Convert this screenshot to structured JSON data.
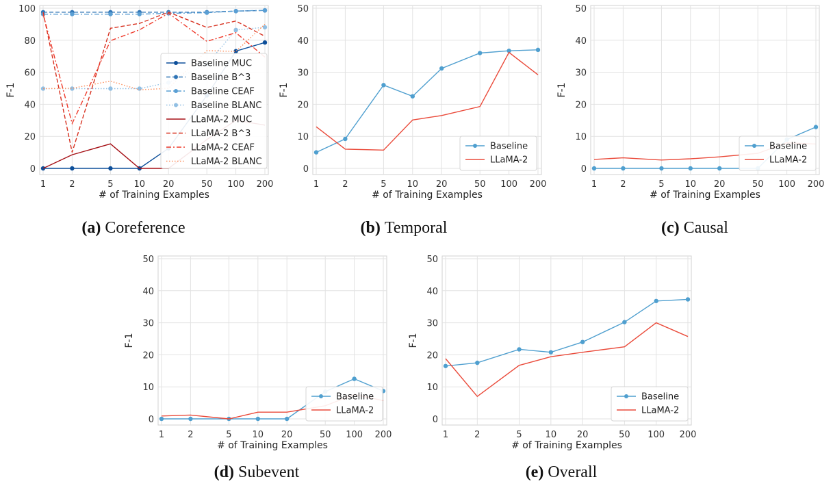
{
  "x_ticks": [
    1,
    2,
    5,
    10,
    20,
    50,
    100,
    200
  ],
  "chart_data": [
    {
      "id": "a",
      "type": "line",
      "caption_label": "(a)",
      "caption_text": "Coreference",
      "xlabel": "# of Training Examples",
      "ylabel": "F-1",
      "ylim": [
        0,
        100
      ],
      "yticks": [
        0,
        20,
        40,
        60,
        80,
        100
      ],
      "x": [
        1,
        2,
        5,
        10,
        20,
        50,
        100,
        200
      ],
      "grid": true,
      "legend_position": "right",
      "series": [
        {
          "name": "Baseline MUC",
          "color": "#0d4f9a",
          "dash": "solid",
          "marker": true,
          "values": [
            0,
            0,
            0,
            0,
            12.5,
            45.5,
            73.2,
            78.6
          ]
        },
        {
          "name": "Baseline B^3",
          "color": "#2f74b5",
          "dash": "dashed",
          "marker": true,
          "values": [
            97.5,
            97.5,
            97.5,
            97.5,
            97.5,
            97.5,
            98.2,
            98.6
          ]
        },
        {
          "name": "Baseline CEAF",
          "color": "#5a9fd4",
          "dash": "dashdot",
          "marker": true,
          "values": [
            96.3,
            96.3,
            96.3,
            96.3,
            96.8,
            97.2,
            98.2,
            98.7
          ]
        },
        {
          "name": "Baseline BLANC",
          "color": "#91bfe3",
          "dash": "dotted",
          "marker": true,
          "values": [
            49.8,
            49.8,
            49.8,
            49.8,
            53.6,
            65.0,
            86.4,
            88.1
          ]
        },
        {
          "name": "LLaMA-2 MUC",
          "color": "#a50f15",
          "dash": "solid",
          "marker": false,
          "values": [
            0,
            8.5,
            15.3,
            0,
            0,
            18,
            30,
            27
          ]
        },
        {
          "name": "LLaMA-2 B^3",
          "color": "#d7301f",
          "dash": "dashed",
          "marker": false,
          "values": [
            97.5,
            10,
            87.5,
            90.5,
            97.5,
            88,
            92,
            82.5
          ]
        },
        {
          "name": "LLaMA-2 CEAF",
          "color": "#ef3b2c",
          "dash": "dashdot",
          "marker": false,
          "values": [
            96.3,
            28,
            79.7,
            86.5,
            96.8,
            79.3,
            84.7,
            69.5
          ]
        },
        {
          "name": "LLaMA-2 BLANC",
          "color": "#fc8d59",
          "dash": "dotted",
          "marker": false,
          "values": [
            49.8,
            50,
            54.5,
            49.0,
            50.0,
            73.5,
            73.0,
            90.0
          ]
        }
      ]
    },
    {
      "id": "b",
      "type": "line",
      "caption_label": "(b)",
      "caption_text": "Temporal",
      "xlabel": "# of Training Examples",
      "ylabel": "F-1",
      "ylim": [
        0,
        50
      ],
      "yticks": [
        0,
        10,
        20,
        30,
        40,
        50
      ],
      "x": [
        1,
        2,
        5,
        10,
        20,
        50,
        100,
        200
      ],
      "grid": true,
      "legend_position": "lower right",
      "series": [
        {
          "name": "Baseline",
          "color": "#4f9fcf",
          "dash": "solid",
          "marker": true,
          "values": [
            5.0,
            9.2,
            26.0,
            22.5,
            31.2,
            36.0,
            36.7,
            37.0
          ]
        },
        {
          "name": "LLaMA-2",
          "color": "#ea4a3a",
          "dash": "solid",
          "marker": false,
          "values": [
            13.0,
            6.0,
            5.7,
            15.1,
            16.5,
            19.3,
            36.2,
            29.2
          ]
        }
      ]
    },
    {
      "id": "c",
      "type": "line",
      "caption_label": "(c)",
      "caption_text": "Causal",
      "xlabel": "# of Training Examples",
      "ylabel": "F-1",
      "ylim": [
        0,
        50
      ],
      "yticks": [
        0,
        10,
        20,
        30,
        40,
        50
      ],
      "x": [
        1,
        2,
        5,
        10,
        20,
        50,
        100,
        200
      ],
      "grid": true,
      "legend_position": "lower right",
      "series": [
        {
          "name": "Baseline",
          "color": "#4f9fcf",
          "dash": "solid",
          "marker": true,
          "values": [
            0,
            0,
            0,
            0,
            0,
            0,
            9.0,
            12.9
          ]
        },
        {
          "name": "LLaMA-2",
          "color": "#ea4a3a",
          "dash": "solid",
          "marker": false,
          "values": [
            2.8,
            3.3,
            2.6,
            3.0,
            3.6,
            4.7,
            8.0,
            7.6
          ]
        }
      ]
    },
    {
      "id": "d",
      "type": "line",
      "caption_label": "(d)",
      "caption_text": "Subevent",
      "xlabel": "# of Training Examples",
      "ylabel": "F-1",
      "ylim": [
        0,
        50
      ],
      "yticks": [
        0,
        10,
        20,
        30,
        40,
        50
      ],
      "x": [
        1,
        2,
        5,
        10,
        20,
        50,
        100,
        200
      ],
      "grid": true,
      "legend_position": "lower right",
      "series": [
        {
          "name": "Baseline",
          "color": "#4f9fcf",
          "dash": "solid",
          "marker": true,
          "values": [
            0,
            0,
            0,
            0,
            0,
            8.5,
            12.5,
            8.7
          ]
        },
        {
          "name": "LLaMA-2",
          "color": "#ea4a3a",
          "dash": "solid",
          "marker": false,
          "values": [
            0.9,
            1.2,
            0,
            2.1,
            2.1,
            4.1,
            7.6,
            5.7
          ]
        }
      ]
    },
    {
      "id": "e",
      "type": "line",
      "caption_label": "(e)",
      "caption_text": "Overall",
      "xlabel": "# of Training Examples",
      "ylabel": "F-1",
      "ylim": [
        0,
        50
      ],
      "yticks": [
        0,
        10,
        20,
        30,
        40,
        50
      ],
      "x": [
        1,
        2,
        5,
        10,
        20,
        50,
        100,
        200
      ],
      "grid": true,
      "legend_position": "lower right",
      "series": [
        {
          "name": "Baseline",
          "color": "#4f9fcf",
          "dash": "solid",
          "marker": true,
          "values": [
            16.5,
            17.5,
            21.7,
            20.8,
            24.0,
            30.2,
            36.8,
            37.3
          ]
        },
        {
          "name": "LLaMA-2",
          "color": "#ea4a3a",
          "dash": "solid",
          "marker": false,
          "values": [
            18.8,
            7.0,
            16.7,
            19.4,
            20.8,
            22.5,
            30.0,
            25.7
          ]
        }
      ]
    }
  ]
}
